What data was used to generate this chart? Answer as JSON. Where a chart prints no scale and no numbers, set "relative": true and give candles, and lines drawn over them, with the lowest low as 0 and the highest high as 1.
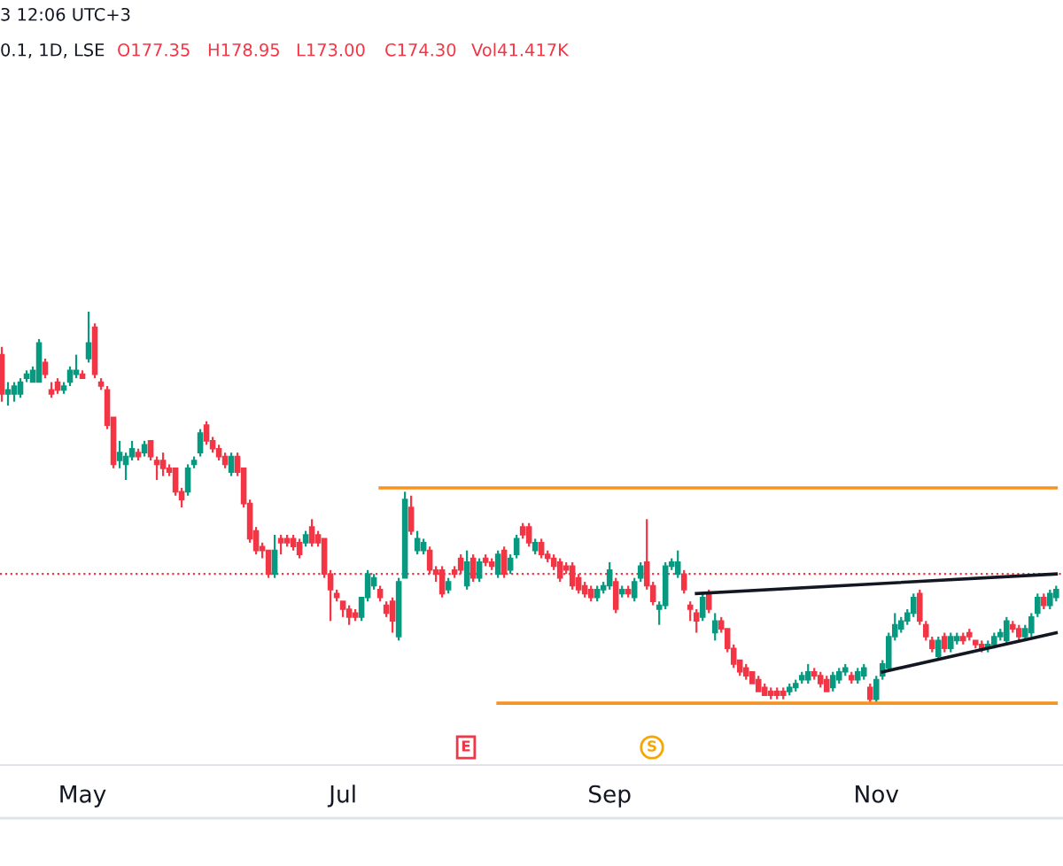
{
  "chart_data": {
    "type": "candlestick",
    "relative": true,
    "categories": [
      null,
      null,
      null,
      null,
      null,
      null,
      null,
      null,
      null,
      null,
      null,
      null,
      null,
      "May",
      null,
      null,
      null,
      null,
      null,
      null,
      null,
      null,
      null,
      null,
      null,
      null,
      null,
      null,
      null,
      null,
      null,
      null,
      null,
      null,
      null,
      null,
      null,
      null,
      null,
      null,
      null,
      null,
      null,
      null,
      null,
      null,
      null,
      null,
      null,
      null,
      null,
      null,
      null,
      null,
      null,
      "Jul",
      null,
      null,
      null,
      null,
      null,
      null,
      null,
      null,
      null,
      null,
      null,
      null,
      null,
      null,
      null,
      null,
      null,
      null,
      null,
      null,
      null,
      null,
      null,
      null,
      null,
      null,
      null,
      null,
      null,
      null,
      null,
      null,
      null,
      null,
      null,
      null,
      null,
      null,
      null,
      null,
      null,
      null,
      "Sep",
      null,
      null,
      null,
      null,
      null,
      null,
      null,
      null,
      null,
      null,
      null,
      null,
      null,
      null,
      null,
      null,
      null,
      null,
      null,
      null,
      null,
      null,
      null,
      null,
      null,
      null,
      null,
      null,
      null,
      null,
      null,
      null,
      null,
      null,
      null,
      null,
      null,
      null,
      null,
      null,
      null,
      null,
      "Nov",
      null,
      null,
      null,
      null,
      null,
      null,
      null,
      null,
      null,
      null,
      null,
      null,
      null,
      null,
      null,
      null,
      null,
      null,
      null,
      null,
      null,
      null,
      null,
      null,
      null,
      null,
      null,
      null,
      null
    ],
    "ohlc": [
      [
        0.89,
        0.91,
        0.77,
        0.79
      ],
      [
        0.79,
        0.82,
        0.76,
        0.8
      ],
      [
        0.79,
        0.82,
        0.77,
        0.81
      ],
      [
        0.79,
        0.83,
        0.78,
        0.82
      ],
      [
        0.83,
        0.85,
        0.82,
        0.84
      ],
      [
        0.82,
        0.86,
        0.82,
        0.85
      ],
      [
        0.82,
        0.93,
        0.82,
        0.92
      ],
      [
        0.87,
        0.88,
        0.83,
        0.84
      ],
      [
        0.8,
        0.82,
        0.78,
        0.79
      ],
      [
        0.82,
        0.83,
        0.79,
        0.8
      ],
      [
        0.8,
        0.82,
        0.79,
        0.81
      ],
      [
        0.82,
        0.86,
        0.81,
        0.85
      ],
      [
        0.84,
        0.89,
        0.83,
        0.85
      ],
      [
        0.84,
        0.85,
        0.83,
        0.83
      ],
      [
        0.88,
        1.0,
        0.87,
        0.92
      ],
      [
        0.96,
        0.97,
        0.83,
        0.84
      ],
      [
        0.82,
        0.83,
        0.8,
        0.81
      ],
      [
        0.8,
        0.81,
        0.7,
        0.71
      ],
      [
        0.73,
        0.73,
        0.6,
        0.61
      ],
      [
        0.62,
        0.67,
        0.6,
        0.64
      ],
      [
        0.61,
        0.64,
        0.57,
        0.63
      ],
      [
        0.63,
        0.67,
        0.62,
        0.65
      ],
      [
        0.64,
        0.65,
        0.62,
        0.63
      ],
      [
        0.64,
        0.67,
        0.63,
        0.66
      ],
      [
        0.67,
        0.67,
        0.62,
        0.63
      ],
      [
        0.62,
        0.63,
        0.57,
        0.61
      ],
      [
        0.62,
        0.64,
        0.58,
        0.6
      ],
      [
        0.6,
        0.61,
        0.58,
        0.59
      ],
      [
        0.6,
        0.6,
        0.53,
        0.54
      ],
      [
        0.54,
        0.55,
        0.5,
        0.52
      ],
      [
        0.54,
        0.61,
        0.53,
        0.6
      ],
      [
        0.61,
        0.63,
        0.6,
        0.62
      ],
      [
        0.64,
        0.7,
        0.63,
        0.69
      ],
      [
        0.71,
        0.72,
        0.66,
        0.67
      ],
      [
        0.67,
        0.68,
        0.64,
        0.65
      ],
      [
        0.65,
        0.66,
        0.62,
        0.63
      ],
      [
        0.63,
        0.64,
        0.6,
        0.61
      ],
      [
        0.59,
        0.64,
        0.58,
        0.63
      ],
      [
        0.63,
        0.64,
        0.58,
        0.59
      ],
      [
        0.6,
        0.6,
        0.5,
        0.51
      ],
      [
        0.51,
        0.52,
        0.41,
        0.42
      ],
      [
        0.44,
        0.45,
        0.38,
        0.39
      ],
      [
        0.4,
        0.41,
        0.37,
        0.39
      ],
      [
        0.39,
        0.39,
        0.32,
        0.33
      ],
      [
        0.33,
        0.43,
        0.32,
        0.39
      ],
      [
        0.42,
        0.43,
        0.38,
        0.41
      ],
      [
        0.42,
        0.43,
        0.4,
        0.41
      ],
      [
        0.42,
        0.43,
        0.39,
        0.4
      ],
      [
        0.41,
        0.42,
        0.37,
        0.38
      ],
      [
        0.41,
        0.44,
        0.4,
        0.43
      ],
      [
        0.45,
        0.47,
        0.4,
        0.41
      ],
      [
        0.43,
        0.44,
        0.4,
        0.41
      ],
      [
        0.42,
        0.42,
        0.32,
        0.33
      ],
      [
        0.33,
        0.34,
        0.21,
        0.29
      ],
      [
        0.28,
        0.29,
        0.26,
        0.27
      ],
      [
        0.26,
        0.26,
        0.22,
        0.24
      ],
      [
        0.24,
        0.25,
        0.2,
        0.22
      ],
      [
        0.23,
        0.24,
        0.21,
        0.22
      ],
      [
        0.22,
        0.27,
        0.21,
        0.27
      ],
      [
        0.27,
        0.34,
        0.26,
        0.33
      ],
      [
        0.3,
        0.33,
        0.29,
        0.32
      ],
      [
        0.29,
        0.3,
        0.26,
        0.27
      ],
      [
        0.25,
        0.26,
        0.22,
        0.23
      ],
      [
        0.26,
        0.27,
        0.18,
        0.21
      ],
      [
        0.17,
        0.32,
        0.16,
        0.31
      ],
      [
        0.32,
        0.54,
        0.32,
        0.52
      ],
      [
        0.5,
        0.53,
        0.43,
        0.44
      ],
      [
        0.39,
        0.44,
        0.38,
        0.42
      ],
      [
        0.39,
        0.42,
        0.38,
        0.41
      ],
      [
        0.39,
        0.4,
        0.33,
        0.34
      ],
      [
        0.34,
        0.35,
        0.31,
        0.33
      ],
      [
        0.34,
        0.35,
        0.27,
        0.28
      ],
      [
        0.29,
        0.32,
        0.28,
        0.31
      ],
      [
        0.34,
        0.35,
        0.32,
        0.33
      ],
      [
        0.37,
        0.38,
        0.33,
        0.34
      ],
      [
        0.3,
        0.39,
        0.29,
        0.36
      ],
      [
        0.37,
        0.38,
        0.31,
        0.32
      ],
      [
        0.32,
        0.37,
        0.31,
        0.36
      ],
      [
        0.37,
        0.38,
        0.35,
        0.36
      ],
      [
        0.36,
        0.37,
        0.34,
        0.35
      ],
      [
        0.33,
        0.39,
        0.32,
        0.38
      ],
      [
        0.39,
        0.4,
        0.32,
        0.33
      ],
      [
        0.34,
        0.38,
        0.33,
        0.37
      ],
      [
        0.38,
        0.43,
        0.37,
        0.42
      ],
      [
        0.45,
        0.46,
        0.42,
        0.43
      ],
      [
        0.45,
        0.46,
        0.4,
        0.41
      ],
      [
        0.39,
        0.42,
        0.38,
        0.41
      ],
      [
        0.41,
        0.42,
        0.37,
        0.38
      ],
      [
        0.38,
        0.39,
        0.36,
        0.37
      ],
      [
        0.37,
        0.38,
        0.34,
        0.35
      ],
      [
        0.36,
        0.37,
        0.31,
        0.32
      ],
      [
        0.35,
        0.36,
        0.33,
        0.34
      ],
      [
        0.35,
        0.36,
        0.29,
        0.3
      ],
      [
        0.32,
        0.33,
        0.28,
        0.29
      ],
      [
        0.3,
        0.31,
        0.27,
        0.28
      ],
      [
        0.29,
        0.3,
        0.26,
        0.27
      ],
      [
        0.27,
        0.3,
        0.26,
        0.29
      ],
      [
        0.29,
        0.31,
        0.28,
        0.3
      ],
      [
        0.3,
        0.36,
        0.29,
        0.34
      ],
      [
        0.31,
        0.32,
        0.23,
        0.24
      ],
      [
        0.28,
        0.3,
        0.27,
        0.29
      ],
      [
        0.29,
        0.3,
        0.27,
        0.28
      ],
      [
        0.27,
        0.32,
        0.26,
        0.31
      ],
      [
        0.32,
        0.36,
        0.31,
        0.35
      ],
      [
        0.36,
        0.47,
        0.29,
        0.3
      ],
      [
        0.3,
        0.31,
        0.25,
        0.26
      ],
      [
        0.24,
        0.26,
        0.2,
        0.25
      ],
      [
        0.25,
        0.36,
        0.24,
        0.35
      ],
      [
        0.35,
        0.37,
        0.34,
        0.36
      ],
      [
        0.33,
        0.39,
        0.32,
        0.36
      ],
      [
        0.33,
        0.34,
        0.28,
        0.29
      ],
      [
        0.25,
        0.26,
        0.21,
        0.24
      ],
      [
        0.23,
        0.24,
        0.18,
        0.21
      ],
      [
        0.22,
        0.28,
        0.21,
        0.27
      ],
      [
        0.28,
        0.29,
        0.23,
        0.24
      ],
      [
        0.18,
        0.23,
        0.16,
        0.21
      ],
      [
        0.21,
        0.22,
        0.18,
        0.19
      ],
      [
        0.19,
        0.19,
        0.13,
        0.14
      ],
      [
        0.14,
        0.15,
        0.09,
        0.1
      ],
      [
        0.11,
        0.11,
        0.07,
        0.08
      ],
      [
        0.09,
        0.1,
        0.06,
        0.07
      ],
      [
        0.08,
        0.08,
        0.05,
        0.05
      ],
      [
        0.06,
        0.07,
        0.03,
        0.03
      ],
      [
        0.04,
        0.05,
        0.02,
        0.02
      ],
      [
        0.03,
        0.04,
        0.01,
        0.02
      ],
      [
        0.03,
        0.04,
        0.01,
        0.02
      ],
      [
        0.03,
        0.04,
        0.01,
        0.02
      ],
      [
        0.03,
        0.05,
        0.02,
        0.04
      ],
      [
        0.04,
        0.06,
        0.03,
        0.05
      ],
      [
        0.06,
        0.08,
        0.05,
        0.07
      ],
      [
        0.06,
        0.1,
        0.05,
        0.08
      ],
      [
        0.08,
        0.09,
        0.06,
        0.07
      ],
      [
        0.07,
        0.08,
        0.04,
        0.05
      ],
      [
        0.06,
        0.07,
        0.03,
        0.03
      ],
      [
        0.04,
        0.08,
        0.03,
        0.07
      ],
      [
        0.06,
        0.09,
        0.05,
        0.08
      ],
      [
        0.08,
        0.1,
        0.07,
        0.09
      ],
      [
        0.07,
        0.08,
        0.05,
        0.06
      ],
      [
        0.06,
        0.09,
        0.05,
        0.08
      ],
      [
        0.07,
        0.1,
        0.06,
        0.09
      ],
      [
        0.04,
        0.05,
        0.0,
        0.01
      ],
      [
        0.01,
        0.07,
        0.0,
        0.06
      ],
      [
        0.07,
        0.11,
        0.06,
        0.1
      ],
      [
        0.09,
        0.18,
        0.08,
        0.17
      ],
      [
        0.17,
        0.23,
        0.16,
        0.2
      ],
      [
        0.19,
        0.22,
        0.18,
        0.21
      ],
      [
        0.21,
        0.24,
        0.2,
        0.23
      ],
      [
        0.23,
        0.28,
        0.22,
        0.27
      ],
      [
        0.28,
        0.29,
        0.2,
        0.21
      ],
      [
        0.2,
        0.21,
        0.16,
        0.17
      ],
      [
        0.16,
        0.17,
        0.13,
        0.14
      ],
      [
        0.12,
        0.17,
        0.11,
        0.16
      ],
      [
        0.17,
        0.18,
        0.13,
        0.14
      ],
      [
        0.14,
        0.18,
        0.13,
        0.17
      ],
      [
        0.16,
        0.18,
        0.15,
        0.17
      ],
      [
        0.17,
        0.18,
        0.15,
        0.16
      ],
      [
        0.18,
        0.19,
        0.16,
        0.17
      ],
      [
        0.16,
        0.16,
        0.14,
        0.15
      ],
      [
        0.15,
        0.16,
        0.13,
        0.14
      ],
      [
        0.14,
        0.16,
        0.13,
        0.15
      ],
      [
        0.15,
        0.18,
        0.14,
        0.17
      ],
      [
        0.17,
        0.19,
        0.16,
        0.18
      ],
      [
        0.16,
        0.22,
        0.15,
        0.21
      ],
      [
        0.2,
        0.21,
        0.18,
        0.19
      ],
      [
        0.19,
        0.2,
        0.16,
        0.17
      ],
      [
        0.17,
        0.2,
        0.16,
        0.19
      ],
      [
        0.18,
        0.23,
        0.17,
        0.22
      ],
      [
        0.23,
        0.28,
        0.22,
        0.27
      ],
      [
        0.27,
        0.28,
        0.24,
        0.25
      ],
      [
        0.25,
        0.29,
        0.24,
        0.28
      ],
      [
        0.27,
        0.3,
        0.26,
        0.29
      ]
    ],
    "series": [
      {
        "type": "line",
        "color": "#f7931e",
        "values": [
          null,
          null,
          null,
          null,
          null,
          null,
          null,
          null,
          null,
          null,
          null,
          null,
          null,
          null,
          null,
          null,
          null,
          null,
          null,
          null,
          null,
          null,
          null,
          null,
          null,
          null,
          null,
          null,
          null,
          null,
          null,
          null,
          null,
          null,
          null,
          null,
          null,
          null,
          null,
          null,
          null,
          null,
          null,
          null,
          null,
          null,
          null,
          null,
          null,
          null,
          null,
          null,
          null,
          null,
          null,
          null,
          null,
          null,
          null,
          null,
          null,
          0.55,
          null,
          null,
          null,
          null,
          null,
          null,
          null,
          null,
          null,
          null,
          null,
          null,
          null,
          null,
          null,
          null,
          null,
          null,
          null,
          null,
          null,
          null,
          null,
          null,
          null,
          null,
          null,
          null,
          null,
          null,
          null,
          null,
          null,
          null,
          null,
          null,
          null,
          null,
          null,
          null,
          null,
          null,
          null,
          null,
          null,
          null,
          null,
          null,
          null,
          null,
          null,
          null,
          null,
          null,
          null,
          null,
          null,
          null,
          null,
          null,
          null,
          null,
          null,
          null,
          null,
          null,
          null,
          null,
          null,
          null,
          null,
          null,
          null,
          null,
          null,
          null,
          null,
          null,
          null,
          null,
          null,
          null,
          null,
          null,
          null,
          null,
          null,
          null,
          null,
          null,
          null,
          null,
          null,
          null,
          null,
          null,
          null,
          null,
          null,
          null,
          null,
          null,
          null,
          null,
          null,
          null,
          null,
          null,
          0.55
        ]
      },
      {
        "type": "line",
        "color": "#f7931e",
        "values": [
          null,
          null,
          null,
          null,
          null,
          null,
          null,
          null,
          null,
          null,
          null,
          null,
          null,
          null,
          null,
          null,
          null,
          null,
          null,
          null,
          null,
          null,
          null,
          null,
          null,
          null,
          null,
          null,
          null,
          null,
          null,
          null,
          null,
          null,
          null,
          null,
          null,
          null,
          null,
          null,
          null,
          null,
          null,
          null,
          null,
          null,
          null,
          null,
          null,
          null,
          null,
          null,
          null,
          null,
          null,
          null,
          null,
          null,
          null,
          null,
          null,
          null,
          null,
          null,
          null,
          null,
          null,
          null,
          null,
          null,
          null,
          null,
          null,
          null,
          null,
          null,
          null,
          null,
          null,
          null,
          0,
          null,
          null,
          null,
          null,
          null,
          null,
          null,
          null,
          null,
          null,
          null,
          null,
          null,
          null,
          null,
          null,
          null,
          null,
          null,
          null,
          null,
          null,
          null,
          null,
          null,
          null,
          null,
          null,
          null,
          null,
          null,
          null,
          null,
          null,
          null,
          null,
          null,
          null,
          null,
          null,
          null,
          null,
          null,
          null,
          null,
          null,
          null,
          null,
          null,
          null,
          null,
          null,
          null,
          null,
          null,
          null,
          null,
          null,
          null,
          null,
          null,
          null,
          null,
          null,
          null,
          null,
          null,
          null,
          null,
          null,
          null,
          null,
          null,
          null,
          null,
          null,
          null,
          null,
          null,
          null,
          null,
          null,
          null,
          null,
          null,
          null,
          null,
          null,
          null,
          0
        ]
      },
      {
        "type": "line",
        "color": "#131722",
        "values": [
          null,
          null,
          null,
          null,
          null,
          null,
          null,
          null,
          null,
          null,
          null,
          null,
          null,
          null,
          null,
          null,
          null,
          null,
          null,
          null,
          null,
          null,
          null,
          null,
          null,
          null,
          null,
          null,
          null,
          null,
          null,
          null,
          null,
          null,
          null,
          null,
          null,
          null,
          null,
          null,
          null,
          null,
          null,
          null,
          null,
          null,
          null,
          null,
          null,
          null,
          null,
          null,
          null,
          null,
          null,
          null,
          null,
          null,
          null,
          null,
          null,
          null,
          null,
          null,
          null,
          null,
          null,
          null,
          null,
          null,
          null,
          null,
          null,
          null,
          null,
          null,
          null,
          null,
          null,
          null,
          null,
          null,
          null,
          null,
          null,
          null,
          null,
          null,
          null,
          null,
          null,
          null,
          null,
          null,
          null,
          null,
          null,
          null,
          null,
          null,
          null,
          null,
          null,
          null,
          null,
          null,
          null,
          null,
          null,
          null,
          null,
          null,
          0.28,
          null,
          null,
          null,
          null,
          null,
          null,
          null,
          null,
          null,
          null,
          null,
          null,
          null,
          null,
          null,
          null,
          null,
          null,
          null,
          null,
          null,
          null,
          null,
          null,
          null,
          null,
          null,
          null,
          null,
          null,
          null,
          null,
          null,
          null,
          null,
          null,
          null,
          null,
          null,
          null,
          null,
          null,
          null,
          null,
          null,
          null,
          null,
          null,
          null,
          null,
          null,
          null,
          null,
          null,
          null,
          null,
          null,
          0.33
        ]
      },
      {
        "type": "line",
        "color": "#131722",
        "values": [
          null,
          null,
          null,
          null,
          null,
          null,
          null,
          null,
          null,
          null,
          null,
          null,
          null,
          null,
          null,
          null,
          null,
          null,
          null,
          null,
          null,
          null,
          null,
          null,
          null,
          null,
          null,
          null,
          null,
          null,
          null,
          null,
          null,
          null,
          null,
          null,
          null,
          null,
          null,
          null,
          null,
          null,
          null,
          null,
          null,
          null,
          null,
          null,
          null,
          null,
          null,
          null,
          null,
          null,
          null,
          null,
          null,
          null,
          null,
          null,
          null,
          null,
          null,
          null,
          null,
          null,
          null,
          null,
          null,
          null,
          null,
          null,
          null,
          null,
          null,
          null,
          null,
          null,
          null,
          null,
          null,
          null,
          null,
          null,
          null,
          null,
          null,
          null,
          null,
          null,
          null,
          null,
          null,
          null,
          null,
          null,
          null,
          null,
          null,
          null,
          null,
          null,
          null,
          null,
          null,
          null,
          null,
          null,
          null,
          null,
          null,
          null,
          null,
          null,
          null,
          null,
          null,
          null,
          null,
          null,
          null,
          null,
          null,
          null,
          null,
          null,
          null,
          null,
          null,
          null,
          null,
          null,
          null,
          null,
          null,
          null,
          null,
          null,
          null,
          null,
          null,
          null,
          0.08,
          null,
          null,
          null,
          null,
          null,
          null,
          null,
          null,
          null,
          null,
          null,
          null,
          null,
          null,
          null,
          null,
          null,
          null,
          null,
          null,
          null,
          null,
          null,
          null,
          null,
          null,
          null,
          0.18
        ]
      }
    ],
    "ref_lines": [
      {
        "axis": "y",
        "value": 0.33,
        "color": "#f23645",
        "line_style": "dotted"
      }
    ],
    "annotations": [
      "3 12:06 UTC+3",
      "0.1, 1D, LSE",
      "O177.35",
      "H178.95",
      "L173.00",
      "C174.30",
      "Vol41.417K",
      "E",
      "S"
    ]
  }
}
